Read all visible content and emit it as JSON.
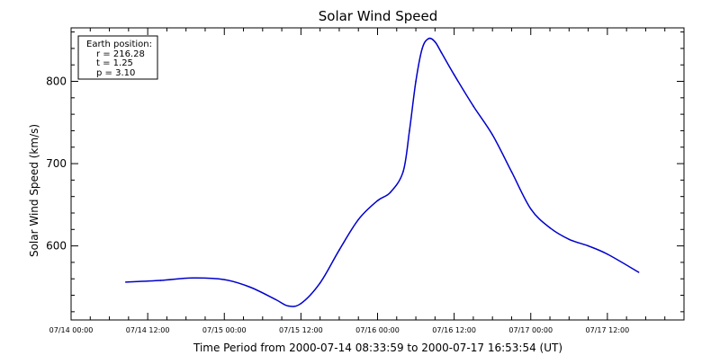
{
  "colors": {
    "background": "#ffffff",
    "axes": "#000000",
    "series": "#0000cc"
  },
  "chart_data": {
    "type": "line",
    "title": "Solar Wind Speed",
    "xlabel": "Time Period from 2000-07-14 08:33:59 to 2000-07-17 16:53:54 (UT)",
    "ylabel": "Solar Wind Speed (km/s)",
    "xlim": [
      "2000-07-14 00:00",
      "2000-07-18 00:00"
    ],
    "ylim": [
      510,
      865
    ],
    "x_ticks": [
      {
        "value": "2000-07-14 00:00",
        "label": "07/14 00:00"
      },
      {
        "value": "2000-07-14 12:00",
        "label": "07/14 12:00"
      },
      {
        "value": "2000-07-15 00:00",
        "label": "07/15 00:00"
      },
      {
        "value": "2000-07-15 12:00",
        "label": "07/15 12:00"
      },
      {
        "value": "2000-07-16 00:00",
        "label": "07/16 00:00"
      },
      {
        "value": "2000-07-16 12:00",
        "label": "07/16 12:00"
      },
      {
        "value": "2000-07-17 00:00",
        "label": "07/17 00:00"
      },
      {
        "value": "2000-07-17 12:00",
        "label": "07/17 12:00"
      }
    ],
    "y_ticks": [
      {
        "value": 600,
        "label": "600"
      },
      {
        "value": 700,
        "label": "700"
      },
      {
        "value": 800,
        "label": "800"
      }
    ],
    "grid": false,
    "legend": "none",
    "annotation": {
      "position": "top-left",
      "lines": [
        "Earth position:",
        "r = 216.28",
        "t = 1.25",
        "p = 3.10"
      ]
    },
    "series": [
      {
        "color": "#0000cc",
        "x": [
          "2000-07-14 08:34",
          "2000-07-14 14:00",
          "2000-07-14 19:00",
          "2000-07-15 00:00",
          "2000-07-15 04:00",
          "2000-07-15 08:00",
          "2000-07-15 10:00",
          "2000-07-15 12:00",
          "2000-07-15 15:00",
          "2000-07-15 18:00",
          "2000-07-15 21:00",
          "2000-07-16 00:00",
          "2000-07-16 02:00",
          "2000-07-16 04:00",
          "2000-07-16 05:00",
          "2000-07-16 06:00",
          "2000-07-16 07:00",
          "2000-07-16 08:00",
          "2000-07-16 09:00",
          "2000-07-16 10:00",
          "2000-07-16 12:00",
          "2000-07-16 15:00",
          "2000-07-16 18:00",
          "2000-07-16 21:00",
          "2000-07-17 00:00",
          "2000-07-17 03:00",
          "2000-07-17 06:00",
          "2000-07-17 09:00",
          "2000-07-17 12:00",
          "2000-07-17 16:54"
        ],
        "y": [
          556,
          558,
          561,
          559,
          550,
          535,
          527,
          530,
          555,
          595,
          632,
          655,
          665,
          690,
          740,
          800,
          840,
          852,
          848,
          835,
          808,
          770,
          735,
          690,
          645,
          622,
          608,
          600,
          590,
          568
        ]
      }
    ]
  }
}
